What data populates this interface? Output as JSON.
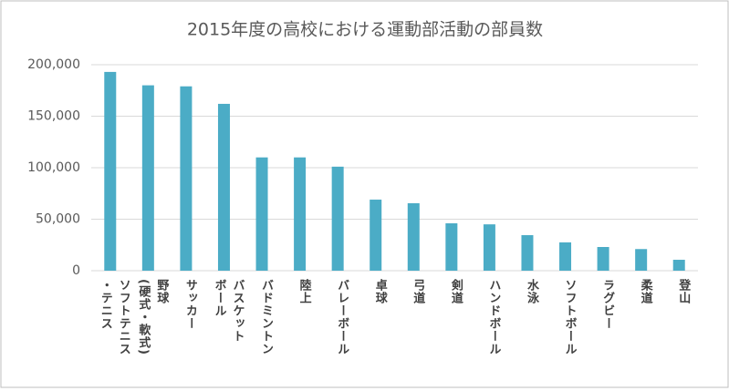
{
  "chart_data": {
    "type": "bar",
    "title": "2015年度の高校における運動部活動の部員数",
    "categories": [
      "ソフトテニス\n・テニス",
      "野球\n(硬式・軟式)",
      "サッカー",
      "バスケット\nボール",
      "バドミントン",
      "陸上",
      "バレーボール",
      "卓球",
      "弓道",
      "剣道",
      "ハンドボール",
      "水泳",
      "ソフトボール",
      "ラグビー",
      "柔道",
      "登山"
    ],
    "values": [
      193000,
      180000,
      179000,
      162000,
      110000,
      110000,
      101000,
      69000,
      65500,
      46000,
      45000,
      34500,
      27500,
      23000,
      21000,
      10600
    ],
    "color": "#4bacc6",
    "ylim": [
      0,
      200000
    ],
    "yticks": [
      {
        "value": 0,
        "label": "0"
      },
      {
        "value": 50000,
        "label": "50,000"
      },
      {
        "value": 100000,
        "label": "100,000"
      },
      {
        "value": 150000,
        "label": "150,000"
      },
      {
        "value": 200000,
        "label": "200,000"
      }
    ],
    "grid": true
  }
}
